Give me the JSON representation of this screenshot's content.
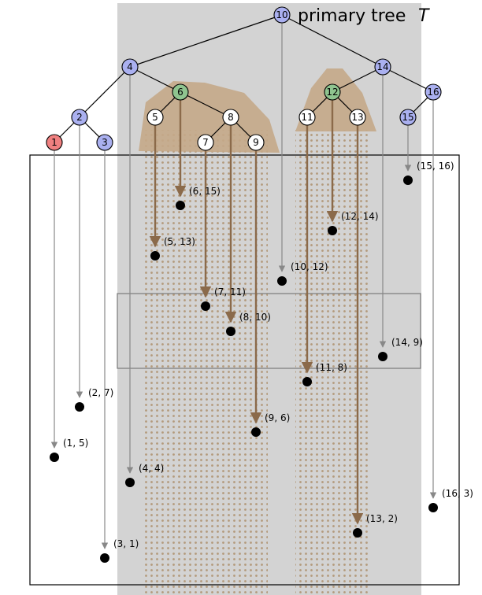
{
  "diagram": {
    "title": {
      "text": "primary tree",
      "var": "T",
      "root_label": "10"
    },
    "colors": {
      "internal": "#aab0f0",
      "leaf_red": "#f08080",
      "leaf_green": "#8fc48f",
      "leaf_white": "#ffffff",
      "band": "#d3d3d3",
      "tan": "#c4a888",
      "arrow_brown": "#8b6a4a",
      "arrow_gray": "#888888"
    },
    "nodes": [
      {
        "id": "10",
        "label": "10",
        "kind": "internal"
      },
      {
        "id": "4",
        "label": "4",
        "kind": "internal"
      },
      {
        "id": "14",
        "label": "14",
        "kind": "internal"
      },
      {
        "id": "2",
        "label": "2",
        "kind": "internal"
      },
      {
        "id": "6",
        "label": "6",
        "kind": "green"
      },
      {
        "id": "12",
        "label": "12",
        "kind": "green"
      },
      {
        "id": "16",
        "label": "16",
        "kind": "internal"
      },
      {
        "id": "1",
        "label": "1",
        "kind": "red"
      },
      {
        "id": "3",
        "label": "3",
        "kind": "internal"
      },
      {
        "id": "5",
        "label": "5",
        "kind": "white"
      },
      {
        "id": "8",
        "label": "8",
        "kind": "white"
      },
      {
        "id": "7",
        "label": "7",
        "kind": "white"
      },
      {
        "id": "9",
        "label": "9",
        "kind": "white"
      },
      {
        "id": "11",
        "label": "11",
        "kind": "white"
      },
      {
        "id": "13",
        "label": "13",
        "kind": "white"
      },
      {
        "id": "15",
        "label": "15",
        "kind": "internal"
      }
    ],
    "edges": [
      [
        "10",
        "4"
      ],
      [
        "10",
        "14"
      ],
      [
        "4",
        "2"
      ],
      [
        "4",
        "6"
      ],
      [
        "2",
        "1"
      ],
      [
        "2",
        "3"
      ],
      [
        "6",
        "5"
      ],
      [
        "6",
        "8"
      ],
      [
        "8",
        "7"
      ],
      [
        "8",
        "9"
      ],
      [
        "14",
        "12"
      ],
      [
        "14",
        "16"
      ],
      [
        "12",
        "11"
      ],
      [
        "12",
        "13"
      ],
      [
        "16",
        "15"
      ]
    ],
    "points": [
      {
        "id": "p1",
        "label": "(1, 5)",
        "from": "1",
        "style": "gray"
      },
      {
        "id": "p2",
        "label": "(2, 7)",
        "from": "2",
        "style": "gray"
      },
      {
        "id": "p3",
        "label": "(3, 1)",
        "from": "3",
        "style": "gray"
      },
      {
        "id": "p4",
        "label": "(4, 4)",
        "from": "4",
        "style": "gray"
      },
      {
        "id": "p5",
        "label": "(5, 13)",
        "from": "5",
        "style": "brown"
      },
      {
        "id": "p6",
        "label": "(6, 15)",
        "from": "6",
        "style": "brown"
      },
      {
        "id": "p7",
        "label": "(7, 11)",
        "from": "7",
        "style": "brown"
      },
      {
        "id": "p8",
        "label": "(8, 10)",
        "from": "8",
        "style": "brown"
      },
      {
        "id": "p9",
        "label": "(9, 6)",
        "from": "9",
        "style": "brown"
      },
      {
        "id": "p10",
        "label": "(10, 12)",
        "from": "10",
        "style": "gray"
      },
      {
        "id": "p11",
        "label": "(11, 8)",
        "from": "11",
        "style": "brown"
      },
      {
        "id": "p12",
        "label": "(12, 14)",
        "from": "12",
        "style": "brown"
      },
      {
        "id": "p13",
        "label": "(13, 2)",
        "from": "13",
        "style": "brown"
      },
      {
        "id": "p14",
        "label": "(14, 9)",
        "from": "14",
        "style": "gray"
      },
      {
        "id": "p15",
        "label": "(15, 16)",
        "from": "15",
        "style": "gray"
      },
      {
        "id": "p16",
        "label": "(16, 3)",
        "from": "16",
        "style": "gray"
      }
    ]
  }
}
